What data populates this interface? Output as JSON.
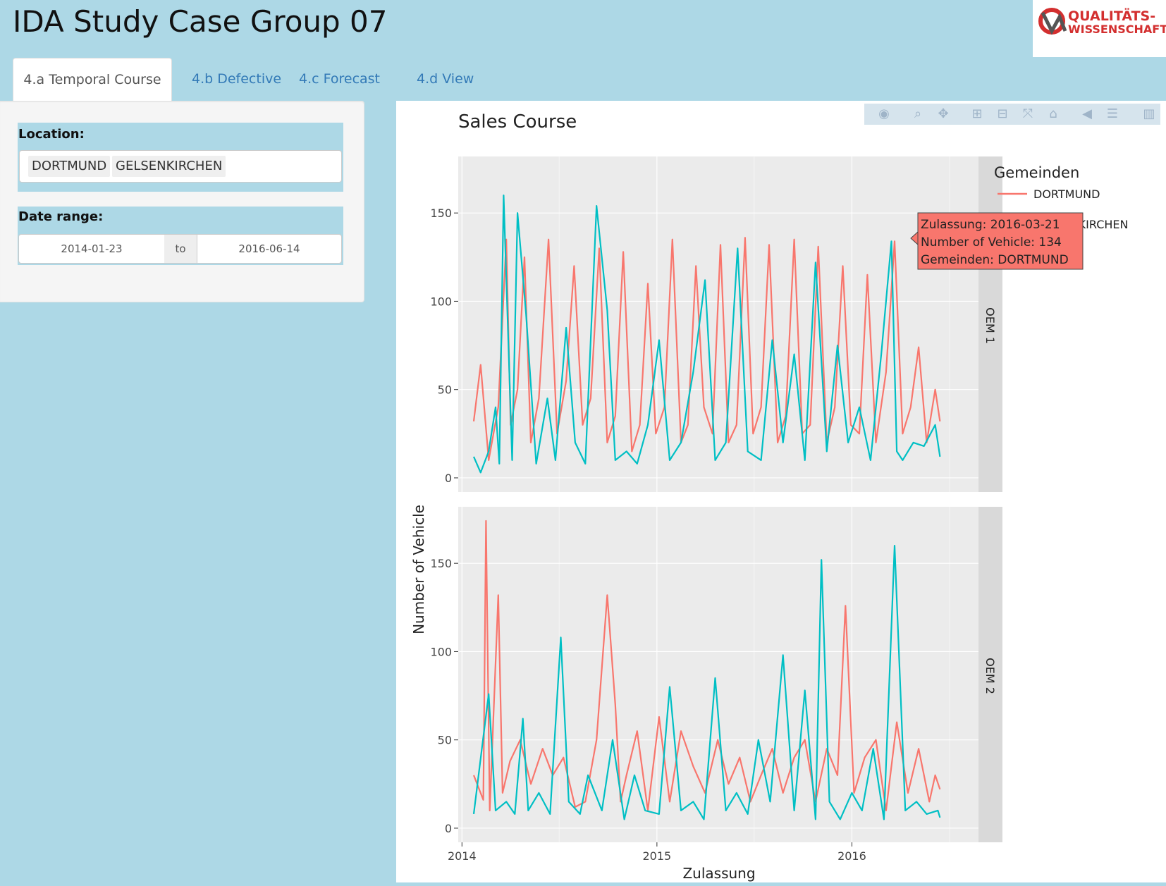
{
  "app": {
    "title": "IDA Study Case Group 07"
  },
  "logo": {
    "line1": "QUALITÄTS-",
    "line2": "WISSENSCHAFT",
    "brand_color": "#d32f2f"
  },
  "tabs": [
    {
      "label": "4.a Temporal Course",
      "active": true
    },
    {
      "label": "4.b Defective",
      "active": false
    },
    {
      "label": "4.c Forecast",
      "active": false
    },
    {
      "label": "4.d View",
      "active": false
    }
  ],
  "sidebar": {
    "location_label": "Location:",
    "locations": [
      "DORTMUND",
      "GELSENKIRCHEN"
    ],
    "date_label": "Date range:",
    "date_start": "2014-01-23",
    "date_sep": "to",
    "date_end": "2016-06-14"
  },
  "modebar": {
    "icons": [
      "camera-icon",
      "zoom-icon",
      "pan-icon",
      "zoom-in-icon",
      "zoom-out-icon",
      "autoscale-icon",
      "reset-axes-icon",
      "hover-closest-icon",
      "hover-compare-icon",
      "plotly-logo-icon"
    ]
  },
  "tooltip": {
    "line1": "Zulassung: 2016-03-21",
    "line2": "Number of Vehicle: 134",
    "line3": "Gemeinden: DORTMUND"
  },
  "chart_data": {
    "type": "line",
    "title": "Sales Course",
    "xlabel": "Zulassung",
    "ylabel": "Number of Vehicle",
    "x_ticks": [
      "2014",
      "2015",
      "2016"
    ],
    "x_tick_dates": [
      "2014-01-01",
      "2015-01-01",
      "2016-01-01"
    ],
    "xlim": [
      "2013-12-25",
      "2016-08-25"
    ],
    "y_ticks": [
      0,
      50,
      100,
      150
    ],
    "ylim": [
      -8,
      182
    ],
    "legend_title": "Gemeinden",
    "legend_position": "right",
    "colors": {
      "DORTMUND": "#f8766d",
      "GELSENKIRCHEN": "#00bfc4"
    },
    "grid": true,
    "panels": [
      {
        "strip": "OEM 1",
        "series": [
          {
            "name": "DORTMUND",
            "color": "#f8766d",
            "x": [
              "2014-01-23",
              "2014-02-05",
              "2014-02-20",
              "2014-03-10",
              "2014-03-25",
              "2014-04-02",
              "2014-04-15",
              "2014-04-28",
              "2014-05-10",
              "2014-05-25",
              "2014-06-12",
              "2014-06-28",
              "2014-07-15",
              "2014-07-30",
              "2014-08-15",
              "2014-08-30",
              "2014-09-15",
              "2014-09-30",
              "2014-10-15",
              "2014-10-30",
              "2014-11-15",
              "2014-11-30",
              "2014-12-15",
              "2014-12-30",
              "2015-01-15",
              "2015-01-30",
              "2015-02-15",
              "2015-02-28",
              "2015-03-15",
              "2015-03-30",
              "2015-04-15",
              "2015-04-30",
              "2015-05-15",
              "2015-05-30",
              "2015-06-15",
              "2015-06-30",
              "2015-07-15",
              "2015-07-30",
              "2015-08-15",
              "2015-08-30",
              "2015-09-15",
              "2015-09-30",
              "2015-10-15",
              "2015-10-30",
              "2015-11-15",
              "2015-11-30",
              "2015-12-15",
              "2015-12-30",
              "2016-01-15",
              "2016-01-30",
              "2016-02-15",
              "2016-03-05",
              "2016-03-21",
              "2016-04-05",
              "2016-04-20",
              "2016-05-05",
              "2016-05-20",
              "2016-06-05",
              "2016-06-14"
            ],
            "y": [
              32,
              64,
              10,
              40,
              135,
              30,
              50,
              125,
              20,
              45,
              135,
              25,
              55,
              120,
              30,
              45,
              130,
              20,
              35,
              128,
              15,
              30,
              110,
              25,
              40,
              135,
              20,
              30,
              120,
              40,
              25,
              132,
              20,
              30,
              136,
              25,
              40,
              132,
              20,
              35,
              135,
              25,
              30,
              131,
              20,
              40,
              120,
              30,
              25,
              115,
              20,
              60,
              134,
              25,
              40,
              74,
              20,
              50,
              32
            ]
          },
          {
            "name": "GELSENKIRCHEN",
            "color": "#00bfc4",
            "x": [
              "2014-01-23",
              "2014-02-05",
              "2014-02-20",
              "2014-03-05",
              "2014-03-12",
              "2014-03-20",
              "2014-04-05",
              "2014-04-15",
              "2014-05-01",
              "2014-05-20",
              "2014-06-10",
              "2014-06-25",
              "2014-07-15",
              "2014-08-01",
              "2014-08-20",
              "2014-09-10",
              "2014-09-30",
              "2014-10-15",
              "2014-11-05",
              "2014-11-25",
              "2014-12-15",
              "2015-01-05",
              "2015-01-25",
              "2015-02-15",
              "2015-03-10",
              "2015-04-01",
              "2015-04-20",
              "2015-05-10",
              "2015-06-01",
              "2015-06-20",
              "2015-07-15",
              "2015-08-05",
              "2015-08-25",
              "2015-09-15",
              "2015-10-05",
              "2015-10-25",
              "2015-11-15",
              "2015-12-05",
              "2015-12-25",
              "2016-01-15",
              "2016-02-05",
              "2016-02-25",
              "2016-03-15",
              "2016-03-25",
              "2016-04-05",
              "2016-04-25",
              "2016-05-15",
              "2016-06-05",
              "2016-06-14"
            ],
            "y": [
              12,
              3,
              15,
              40,
              8,
              160,
              10,
              150,
              93,
              8,
              45,
              10,
              85,
              20,
              8,
              154,
              95,
              10,
              15,
              8,
              30,
              78,
              10,
              20,
              60,
              112,
              10,
              20,
              130,
              15,
              10,
              78,
              20,
              70,
              10,
              122,
              15,
              75,
              20,
              40,
              10,
              70,
              134,
              15,
              10,
              20,
              18,
              30,
              12
            ]
          }
        ]
      },
      {
        "strip": "OEM 2",
        "series": [
          {
            "name": "DORTMUND",
            "color": "#f8766d",
            "x": [
              "2014-01-23",
              "2014-02-10",
              "2014-02-15",
              "2014-02-22",
              "2014-03-10",
              "2014-03-18",
              "2014-04-01",
              "2014-04-20",
              "2014-05-10",
              "2014-06-01",
              "2014-06-20",
              "2014-07-10",
              "2014-08-01",
              "2014-08-20",
              "2014-09-10",
              "2014-09-30",
              "2014-10-15",
              "2014-10-25",
              "2014-11-05",
              "2014-11-25",
              "2014-12-15",
              "2015-01-05",
              "2015-01-25",
              "2015-02-15",
              "2015-03-10",
              "2015-04-01",
              "2015-04-25",
              "2015-05-15",
              "2015-06-05",
              "2015-06-25",
              "2015-07-15",
              "2015-08-05",
              "2015-08-25",
              "2015-09-15",
              "2015-10-05",
              "2015-10-25",
              "2015-11-15",
              "2015-12-05",
              "2015-12-20",
              "2016-01-05",
              "2016-01-25",
              "2016-02-15",
              "2016-03-05",
              "2016-03-25",
              "2016-04-15",
              "2016-05-05",
              "2016-05-25",
              "2016-06-05",
              "2016-06-14"
            ],
            "y": [
              30,
              16,
              174,
              10,
              132,
              20,
              38,
              50,
              25,
              45,
              30,
              40,
              12,
              15,
              50,
              132,
              70,
              15,
              30,
              55,
              10,
              63,
              15,
              55,
              35,
              20,
              50,
              25,
              40,
              15,
              30,
              45,
              20,
              40,
              50,
              15,
              45,
              30,
              126,
              20,
              40,
              50,
              10,
              60,
              20,
              45,
              15,
              30,
              22
            ]
          },
          {
            "name": "GELSENKIRCHEN",
            "color": "#00bfc4",
            "x": [
              "2014-01-23",
              "2014-02-20",
              "2014-03-05",
              "2014-03-25",
              "2014-04-10",
              "2014-04-25",
              "2014-05-05",
              "2014-05-25",
              "2014-06-15",
              "2014-07-05",
              "2014-07-20",
              "2014-08-10",
              "2014-08-25",
              "2014-09-20",
              "2014-10-10",
              "2014-11-01",
              "2014-11-20",
              "2014-12-10",
              "2015-01-05",
              "2015-01-25",
              "2015-02-15",
              "2015-03-10",
              "2015-03-30",
              "2015-04-20",
              "2015-05-10",
              "2015-05-30",
              "2015-06-20",
              "2015-07-10",
              "2015-08-01",
              "2015-08-25",
              "2015-09-15",
              "2015-10-05",
              "2015-10-25",
              "2015-11-05",
              "2015-11-20",
              "2015-12-10",
              "2016-01-01",
              "2016-01-20",
              "2016-02-10",
              "2016-03-01",
              "2016-03-21",
              "2016-04-10",
              "2016-05-01",
              "2016-05-20",
              "2016-06-10",
              "2016-06-14"
            ],
            "y": [
              8,
              76,
              10,
              15,
              8,
              62,
              10,
              20,
              8,
              108,
              15,
              8,
              30,
              10,
              50,
              5,
              30,
              10,
              8,
              80,
              10,
              15,
              5,
              85,
              10,
              20,
              8,
              50,
              15,
              98,
              10,
              78,
              5,
              152,
              15,
              5,
              20,
              10,
              45,
              5,
              160,
              10,
              15,
              8,
              10,
              6
            ]
          }
        ]
      }
    ]
  }
}
